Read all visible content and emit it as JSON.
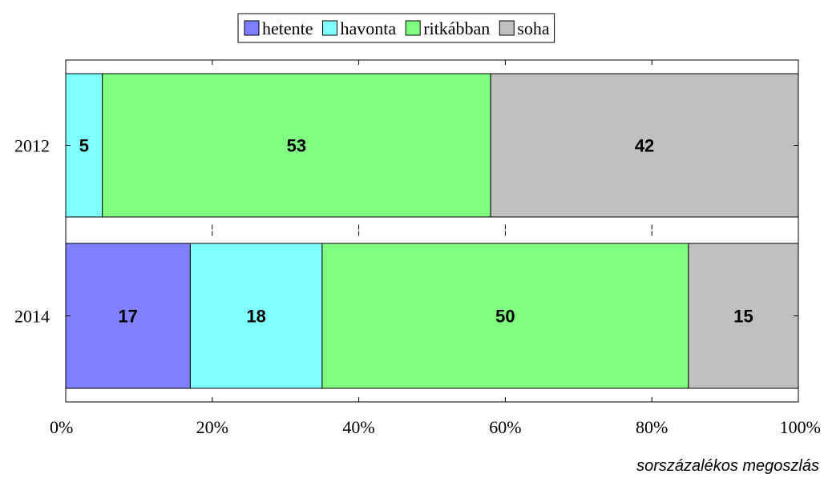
{
  "chart_data": {
    "type": "bar",
    "orientation": "horizontal",
    "stacked": true,
    "categories": [
      "2012",
      "2014"
    ],
    "series": [
      {
        "name": "hetente",
        "values": [
          0,
          17
        ],
        "color": "#8080ff"
      },
      {
        "name": "havonta",
        "values": [
          5,
          18
        ],
        "color": "#80ffff"
      },
      {
        "name": "ritkábban",
        "values": [
          53,
          50
        ],
        "color": "#80ff80"
      },
      {
        "name": "soha",
        "values": [
          42,
          15
        ],
        "color": "#c0c0c0"
      }
    ],
    "xlim": [
      0,
      100
    ],
    "xticks": [
      "0%",
      "20%",
      "40%",
      "60%",
      "80%",
      "100%"
    ],
    "xlabel": "sorszázalékos megoszlás",
    "legend": "top-center",
    "grid": false
  }
}
